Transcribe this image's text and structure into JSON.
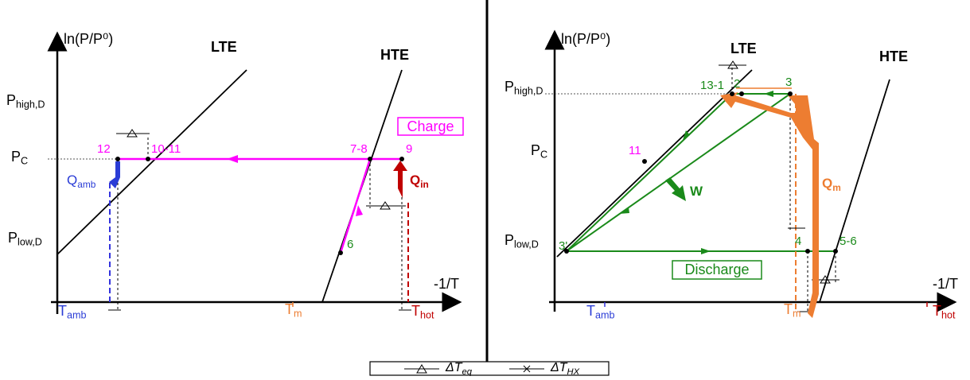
{
  "left": {
    "y_axis": "ln(P/P⁰)",
    "x_axis": "-1/T",
    "y_labels": [
      {
        "text": "P",
        "sub": "high,D"
      },
      {
        "text": "P",
        "sub": "C"
      },
      {
        "text": "P",
        "sub": "low,D"
      }
    ],
    "curves": [
      "LTE",
      "HTE"
    ],
    "points": [
      "12",
      "10-11",
      "7-8",
      "9",
      "6"
    ],
    "box_label": "Charge",
    "heat_labels": [
      {
        "text": "Q",
        "sub": "amb"
      },
      {
        "text": "Q",
        "sub": "in"
      }
    ],
    "temp_labels": [
      {
        "text": "T",
        "sub": "amb"
      },
      {
        "text": "T",
        "sub": "m"
      },
      {
        "text": "T",
        "sub": "hot"
      }
    ]
  },
  "right": {
    "y_axis": "ln(P/P⁰)",
    "x_axis": "-1/T",
    "y_labels": [
      {
        "text": "P",
        "sub": "high,D"
      },
      {
        "text": "P",
        "sub": "C"
      },
      {
        "text": "P",
        "sub": "low,D"
      }
    ],
    "curves": [
      "LTE",
      "HTE"
    ],
    "points": [
      "13-1",
      "2",
      "3",
      "11",
      "3'",
      "4",
      "5-6"
    ],
    "box_label": "Discharge",
    "heat_labels": [
      {
        "text": "W"
      },
      {
        "text": "Q",
        "sub": "m"
      }
    ],
    "temp_labels": [
      {
        "text": "T",
        "sub": "amb"
      },
      {
        "text": "T",
        "sub": "m"
      },
      {
        "text": "T",
        "sub": "hot"
      }
    ]
  },
  "legend": [
    {
      "text": "ΔT",
      "sub": "eq"
    },
    {
      "text": "ΔT",
      "sub": "HX"
    }
  ]
}
